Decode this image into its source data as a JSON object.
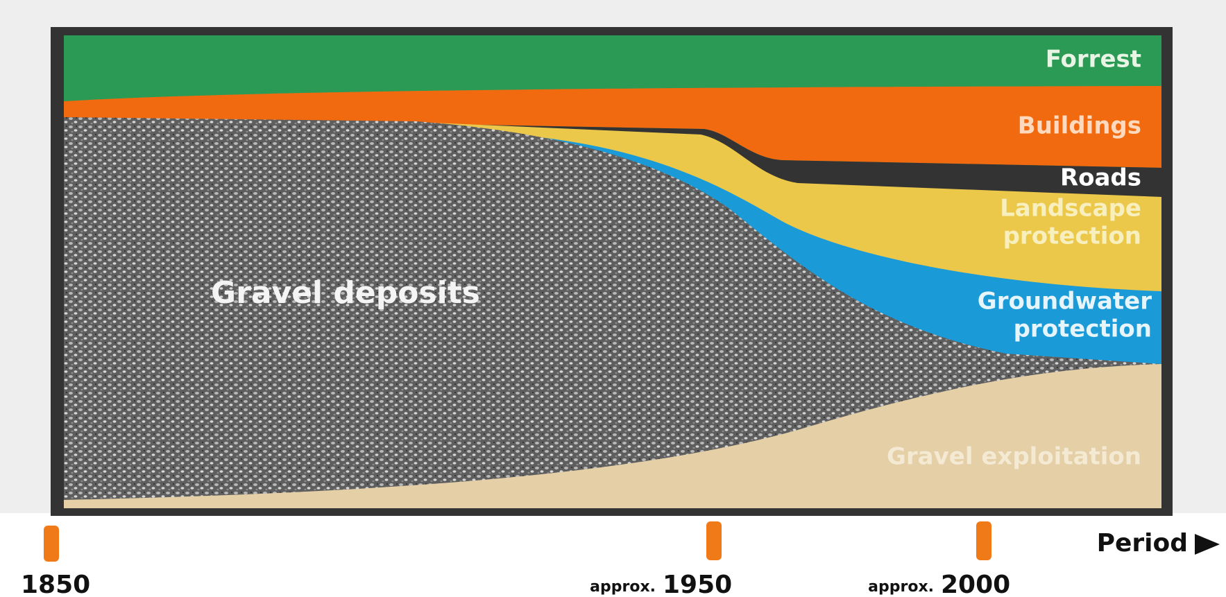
{
  "layers": {
    "forrest": {
      "label": "Forrest"
    },
    "buildings": {
      "label": "Buildings"
    },
    "roads": {
      "label": "Roads"
    },
    "landscape": {
      "lines": [
        "Landscape",
        "protection"
      ]
    },
    "groundwater": {
      "lines": [
        "Groundwater",
        "protection"
      ]
    },
    "exploitation": {
      "label": "Gravel exploitation"
    },
    "deposits": {
      "label": "Gravel deposits"
    }
  },
  "timeline": {
    "axis_label": "Period",
    "markers": [
      {
        "year": "1850"
      },
      {
        "prefix": "approx.",
        "year": "1950"
      },
      {
        "prefix": "approx.",
        "year": "2000"
      }
    ]
  }
}
